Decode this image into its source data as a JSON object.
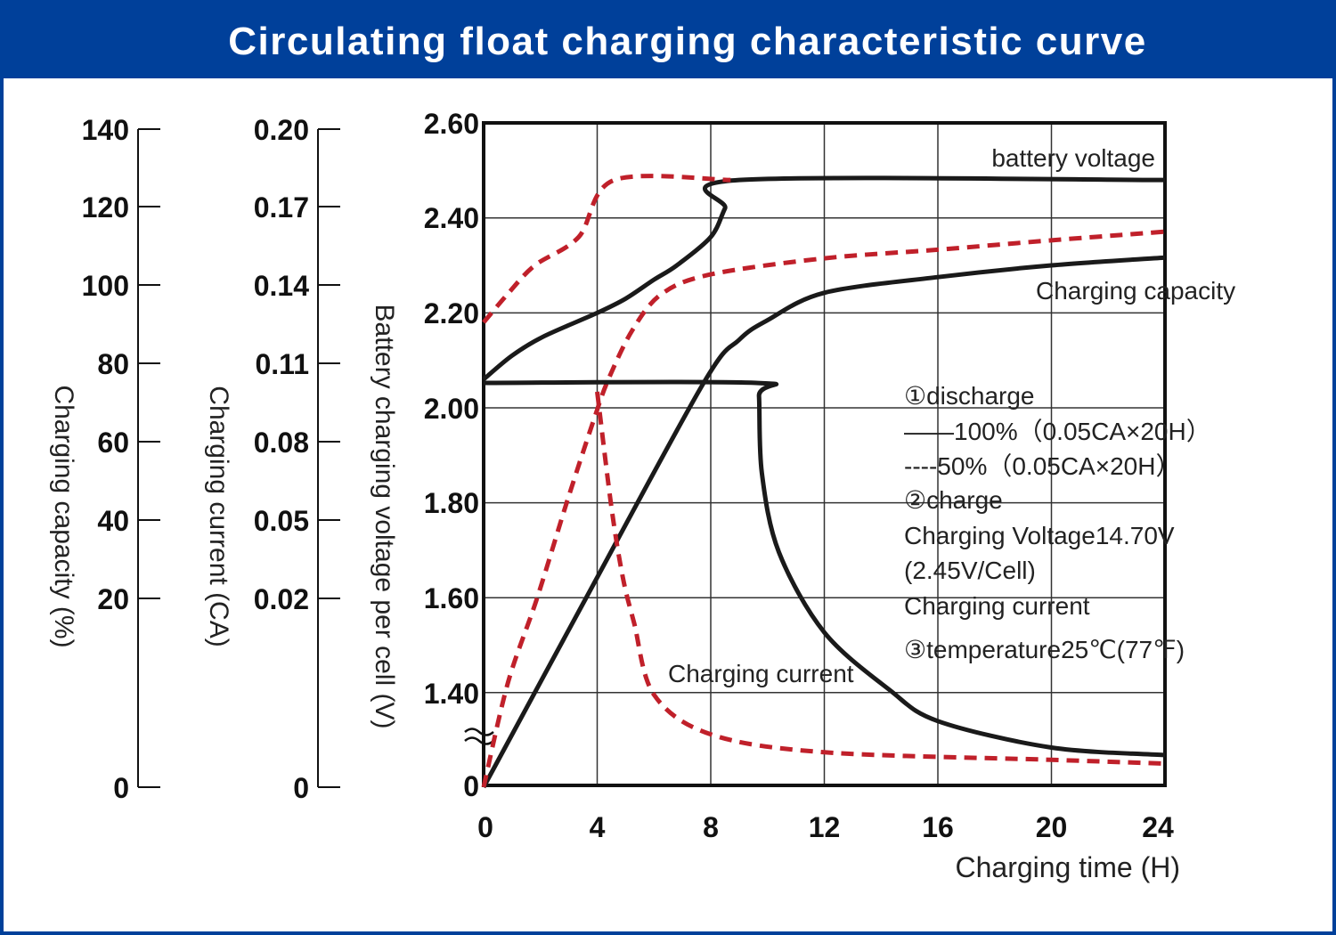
{
  "title": "Circulating float charging characteristic curve",
  "colors": {
    "header": "#00409A",
    "solid": "#1a1a1a",
    "dashed": "#C0202A"
  },
  "chart_data": {
    "type": "line",
    "title": "Circulating float charging characteristic curve",
    "xlabel": "Charging time (H)",
    "xlim": [
      0,
      24
    ],
    "xticks": [
      "0",
      "4",
      "8",
      "12",
      "16",
      "20",
      "24"
    ],
    "grid": true,
    "axes": {
      "capacity": {
        "label": "Charging capacity (%)",
        "ticks": [
          "140",
          "120",
          "100",
          "80",
          "60",
          "40",
          "20",
          "0"
        ]
      },
      "current": {
        "label": "Charging current (CA)",
        "ticks": [
          "0.20",
          "0.17",
          "0.14",
          "0.11",
          "0.08",
          "0.05",
          "0.02",
          "0"
        ]
      },
      "voltage": {
        "label": "Battery charging voltage per cell (V)",
        "ticks": [
          "2.60",
          "2.40",
          "2.20",
          "2.00",
          "1.80",
          "1.60",
          "1.40",
          "0"
        ]
      }
    },
    "annotations": {
      "voltage": "battery voltage",
      "capacity": "Charging capacity",
      "current": "Charging current"
    },
    "legend": [
      "①discharge",
      "——100%（0.05CA×20H）",
      "----50%（0.05CA×20H）",
      "②charge",
      "Charging Voltage14.70V",
      "(2.45V/Cell)",
      "Charging current",
      "③temperature25℃(77℉)"
    ],
    "series": [
      {
        "axis": "voltage",
        "style": "solid",
        "discharge": "100%",
        "points": [
          [
            0,
            2.06
          ],
          [
            1,
            2.11
          ],
          [
            2.1,
            2.15
          ],
          [
            4,
            2.2
          ],
          [
            5,
            2.23
          ],
          [
            6,
            2.27
          ],
          [
            6.8,
            2.3
          ],
          [
            8,
            2.36
          ],
          [
            8.5,
            2.42
          ],
          [
            9,
            2.48
          ],
          [
            24,
            2.48
          ]
        ]
      },
      {
        "axis": "voltage",
        "style": "dashed",
        "discharge": "50%",
        "points": [
          [
            0,
            2.18
          ],
          [
            0.85,
            2.24
          ],
          [
            1.8,
            2.3
          ],
          [
            3.35,
            2.36
          ],
          [
            4.6,
            2.48
          ],
          [
            8.7,
            2.48
          ]
        ]
      },
      {
        "axis": "capacity",
        "style": "solid",
        "discharge": "100%",
        "points": [
          [
            0,
            0
          ],
          [
            3.6,
            20
          ],
          [
            7.75,
            75
          ],
          [
            9,
            86
          ],
          [
            10,
            91
          ],
          [
            12,
            98
          ],
          [
            16,
            102
          ],
          [
            20,
            105
          ],
          [
            24,
            107
          ]
        ]
      },
      {
        "axis": "capacity",
        "style": "dashed",
        "discharge": "50%",
        "points": [
          [
            0,
            0
          ],
          [
            0.85,
            11
          ],
          [
            1.88,
            20
          ],
          [
            2.95,
            45
          ],
          [
            3.9,
            66
          ],
          [
            4.4,
            76
          ],
          [
            5.25,
            88.6
          ],
          [
            6.27,
            97.7
          ],
          [
            8,
            102.7
          ],
          [
            12,
            106.8
          ],
          [
            16,
            109
          ],
          [
            20,
            111.4
          ],
          [
            24,
            113.6
          ]
        ]
      },
      {
        "axis": "current",
        "style": "solid",
        "discharge": "100%",
        "points": [
          [
            0,
            0.1025
          ],
          [
            9.6,
            0.1025
          ],
          [
            9.7,
            0.0974
          ],
          [
            9.8,
            0.068
          ],
          [
            10.4,
            0.0377
          ],
          [
            12,
            0.0164
          ],
          [
            14.3,
            0.0103
          ],
          [
            16,
            0.007
          ],
          [
            20,
            0.0042
          ],
          [
            24,
            0.0034
          ]
        ]
      },
      {
        "axis": "current",
        "style": "dashed",
        "discharge": "50%",
        "points": [
          [
            4,
            0.0991
          ],
          [
            4.5,
            0.055
          ],
          [
            4.9,
            0.0282
          ],
          [
            5.3,
            0.0174
          ],
          [
            6,
            0.0098
          ],
          [
            8,
            0.0056
          ],
          [
            12,
            0.0037
          ],
          [
            20,
            0.0029
          ],
          [
            24,
            0.0025
          ]
        ]
      }
    ]
  }
}
